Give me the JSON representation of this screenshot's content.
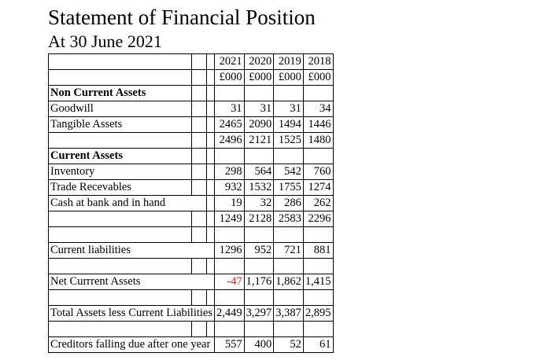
{
  "header": {
    "title": "Statement of Financial Position",
    "subtitle": "At 30 June 2021"
  },
  "table": {
    "rows": [
      {
        "values": [
          "2021",
          "2020",
          "2019",
          "2018"
        ]
      },
      {
        "values": [
          "£000",
          "£000",
          "£000",
          "£000"
        ]
      },
      {
        "label": "Non Current Assets"
      },
      {
        "label": "Goodwill",
        "values": [
          "31",
          "31",
          "31",
          "34"
        ]
      },
      {
        "label": "Tangible Assets",
        "values": [
          "2465",
          "2090",
          "1494",
          "1446"
        ]
      },
      {
        "values": [
          "2496",
          "2121",
          "1525",
          "1480"
        ]
      },
      {
        "label": "Current Assets"
      },
      {
        "label": "Inventory",
        "values": [
          "298",
          "564",
          "542",
          "760"
        ]
      },
      {
        "label": "Trade Recevables",
        "values": [
          "932",
          "1532",
          "1755",
          "1274"
        ]
      },
      {
        "label": "Cash at bank and in hand",
        "values": [
          "19",
          "32",
          "286",
          "262"
        ]
      },
      {
        "values": [
          "1249",
          "2128",
          "2583",
          "2296"
        ]
      },
      null,
      {
        "label": "Current liabilities",
        "values": [
          "1296",
          "952",
          "721",
          "881"
        ]
      },
      null,
      {
        "label": "Net Currrent Assets",
        "values": [
          "-47",
          "1,176",
          "1,862",
          "1,415"
        ]
      },
      null,
      {
        "label": "Total Assets less Current Liabilities",
        "values": [
          "2,449",
          "3,297",
          "3,387",
          "2,895"
        ]
      },
      null,
      {
        "label": "Creditors falling due after one year",
        "values": [
          "557",
          "400",
          "52",
          "61"
        ]
      }
    ]
  }
}
